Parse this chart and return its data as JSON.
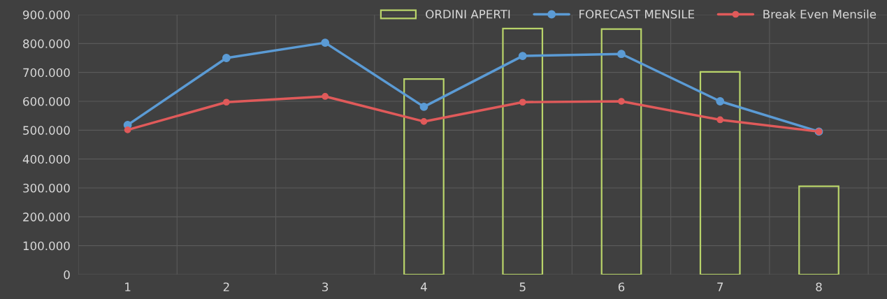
{
  "chart_data": {
    "type": "line",
    "categories": [
      "1",
      "2",
      "3",
      "4",
      "5",
      "6",
      "7",
      "8"
    ],
    "series": [
      {
        "name": "ORDINI APERTI",
        "type": "bar",
        "color": "#b9d46a",
        "values": [
          null,
          null,
          null,
          677000,
          852000,
          850000,
          702000,
          306000
        ]
      },
      {
        "name": "FORECAST MENSILE",
        "color": "#5b9bd5",
        "values": [
          518000,
          750000,
          803000,
          581000,
          757000,
          764000,
          600000,
          495000
        ]
      },
      {
        "name": "Break Even Mensile",
        "color": "#e05a5a",
        "values": [
          501000,
          597000,
          617000,
          530000,
          597000,
          600000,
          536000,
          495000
        ]
      }
    ],
    "ylim": [
      0,
      900000
    ],
    "yticks": [
      0,
      {
        "value": 100000,
        "label": "100.000"
      },
      {
        "value": 200000,
        "label": "200.000"
      },
      {
        "value": 300000,
        "label": "300.000"
      },
      {
        "value": 400000,
        "label": "400.000"
      },
      {
        "value": 500000,
        "label": "500.000"
      },
      {
        "value": 600000,
        "label": "600.000"
      },
      {
        "value": 700000,
        "label": "700.000"
      },
      {
        "value": 800000,
        "label": "800.000"
      },
      {
        "value": 900000,
        "label": "900.000"
      }
    ],
    "grid": true,
    "legend": "top right",
    "marker": "circle",
    "line_style": "solid"
  }
}
